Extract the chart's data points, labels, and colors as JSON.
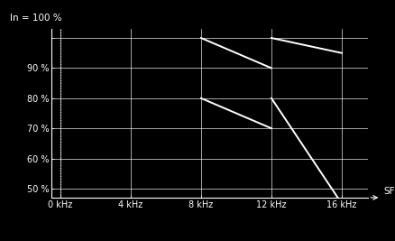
{
  "background_color": "#000000",
  "line_color": "#ffffff",
  "grid_color": "#ffffff",
  "axis_color": "#ffffff",
  "text_color": "#ffffff",
  "ylabel_text": "In = 100 %",
  "xlabel_text": "SF",
  "yticks": [
    50,
    60,
    70,
    80,
    90,
    100
  ],
  "ytick_labels": [
    "50 %",
    "60 %",
    "70 %",
    "80 %",
    "90 %",
    ""
  ],
  "xticks": [
    0,
    4,
    8,
    12,
    16
  ],
  "xtick_labels": [
    "0 kHz",
    "4 kHz",
    "8 kHz",
    "12 kHz",
    "16 kHz"
  ],
  "ylim": [
    47,
    103
  ],
  "xlim": [
    -0.5,
    17.5
  ],
  "lines": [
    {
      "x": [
        8,
        12
      ],
      "y": [
        100,
        90
      ]
    },
    {
      "x": [
        12,
        16
      ],
      "y": [
        100,
        95
      ]
    },
    {
      "x": [
        8,
        12
      ],
      "y": [
        80,
        70
      ]
    },
    {
      "x": [
        12,
        16
      ],
      "y": [
        80,
        45
      ]
    }
  ],
  "linewidth": 1.4,
  "fontsize_ticks": 7,
  "fontsize_label": 7.5,
  "grid_alpha": 0.9,
  "grid_linewidth": 0.5,
  "dotted_x": 0,
  "spine_linewidth": 0.8
}
